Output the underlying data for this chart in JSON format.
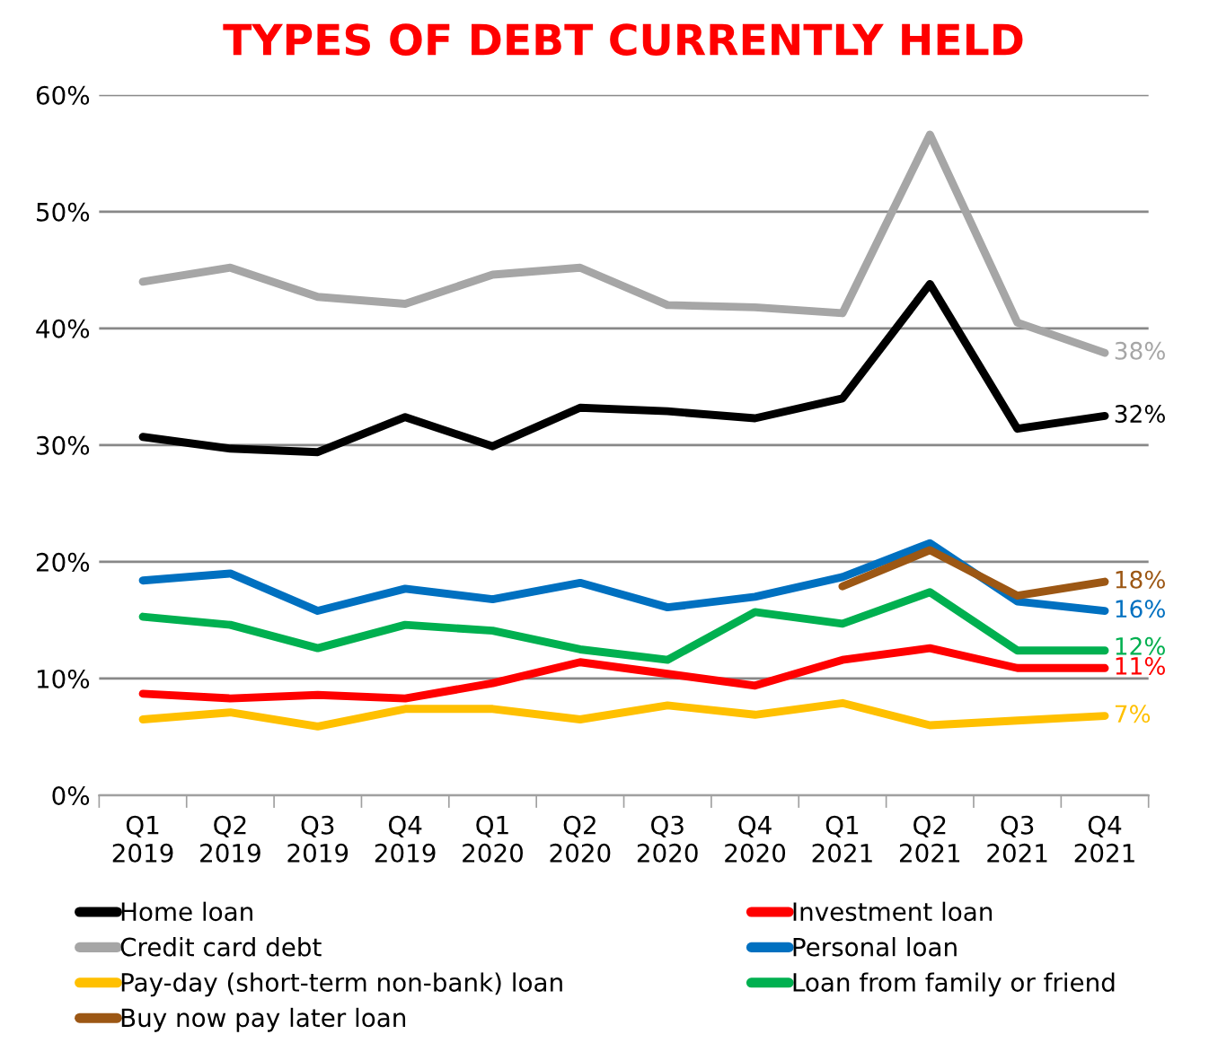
{
  "chart_data": {
    "type": "line",
    "title": "TYPES OF DEBT CURRENTLY HELD",
    "categories": [
      "Q1\n2019",
      "Q2\n2019",
      "Q3\n2019",
      "Q4\n2019",
      "Q1\n2020",
      "Q2\n2020",
      "Q3\n2020",
      "Q4\n2020",
      "Q1\n2021",
      "Q2\n2021",
      "Q3\n2021",
      "Q4\n2021"
    ],
    "series": [
      {
        "name": "Home loan",
        "color": "#000000",
        "values": [
          30.7,
          29.7,
          29.4,
          32.4,
          29.9,
          33.2,
          32.9,
          32.3,
          34.0,
          43.8,
          31.4,
          32.5
        ],
        "value_labels": [
          null,
          null,
          null,
          null,
          null,
          null,
          null,
          null,
          null,
          null,
          null,
          "32%"
        ]
      },
      {
        "name": "Investment loan",
        "color": "#ff0000",
        "values": [
          8.7,
          8.3,
          8.6,
          8.3,
          9.6,
          11.4,
          10.4,
          9.4,
          11.6,
          12.6,
          10.9,
          10.9
        ],
        "value_labels": [
          null,
          null,
          null,
          null,
          null,
          null,
          null,
          null,
          null,
          null,
          null,
          "11%"
        ]
      },
      {
        "name": "Credit card debt",
        "color": "#a6a6a6",
        "values": [
          44.0,
          45.2,
          42.7,
          42.1,
          44.6,
          45.2,
          42.0,
          41.8,
          41.3,
          56.6,
          40.5,
          37.9
        ],
        "value_labels": [
          null,
          null,
          null,
          null,
          null,
          null,
          null,
          null,
          null,
          null,
          null,
          "38%"
        ]
      },
      {
        "name": "Personal loan",
        "color": "#0070c0",
        "values": [
          18.4,
          19.0,
          15.8,
          17.7,
          16.8,
          18.2,
          16.1,
          17.0,
          18.7,
          21.6,
          16.6,
          15.8
        ],
        "value_labels": [
          null,
          null,
          null,
          null,
          null,
          null,
          null,
          null,
          null,
          null,
          null,
          "16%"
        ]
      },
      {
        "name": "Pay-day (short-term non-bank) loan",
        "color": "#ffc000",
        "values": [
          6.5,
          7.1,
          5.9,
          7.4,
          7.4,
          6.5,
          7.7,
          6.9,
          7.9,
          6.0,
          6.4,
          6.8
        ],
        "value_labels": [
          null,
          null,
          null,
          null,
          null,
          null,
          null,
          null,
          null,
          null,
          null,
          "7%"
        ]
      },
      {
        "name": "Loan from family or friend",
        "color": "#00b050",
        "values": [
          15.3,
          14.6,
          12.6,
          14.6,
          14.1,
          12.5,
          11.6,
          15.7,
          14.7,
          17.4,
          12.4,
          12.4
        ],
        "value_labels": [
          null,
          null,
          null,
          null,
          null,
          null,
          null,
          null,
          null,
          null,
          null,
          "12%"
        ]
      },
      {
        "name": "Buy now pay later loan",
        "color": "#9c5714",
        "values": [
          null,
          null,
          null,
          null,
          null,
          null,
          null,
          null,
          17.9,
          21.0,
          17.1,
          18.3
        ],
        "value_labels": [
          null,
          null,
          null,
          null,
          null,
          null,
          null,
          null,
          null,
          null,
          null,
          "18%"
        ]
      }
    ],
    "ylim": [
      0,
      60
    ],
    "yticks": [
      {
        "value": 0,
        "label": "0%"
      },
      {
        "value": 10,
        "label": "10%"
      },
      {
        "value": 20,
        "label": "20%"
      },
      {
        "value": 30,
        "label": "30%"
      },
      {
        "value": 40,
        "label": "40%"
      },
      {
        "value": 50,
        "label": "50%"
      },
      {
        "value": 60,
        "label": "60%"
      }
    ],
    "grid": "y",
    "legend": "bottom",
    "marker": "none",
    "line_style": "solid"
  }
}
